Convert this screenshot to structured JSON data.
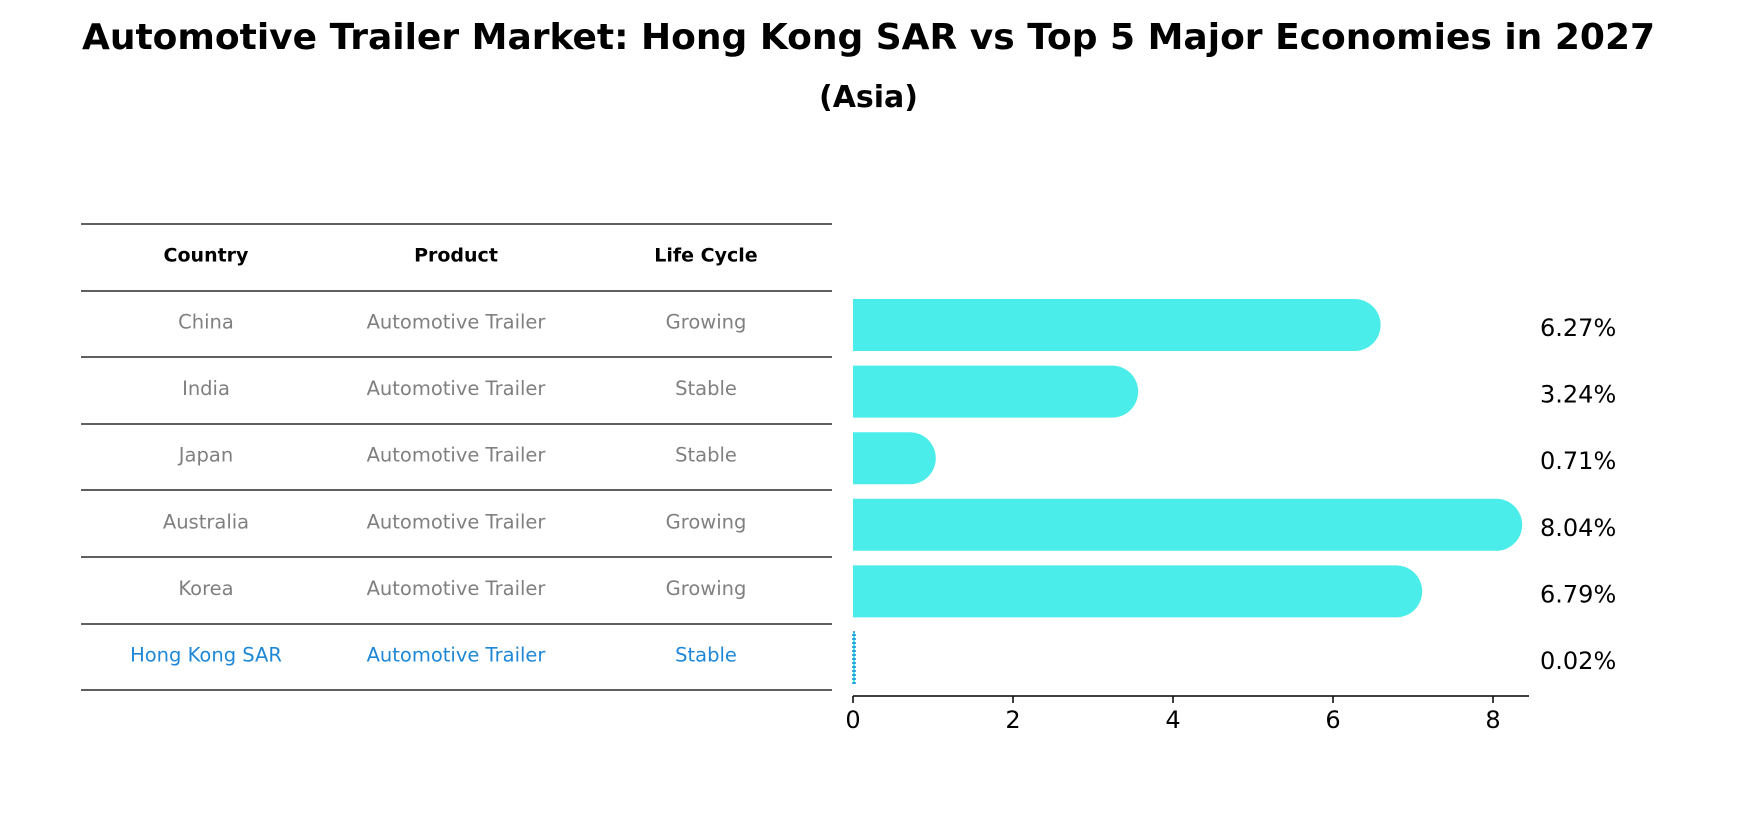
{
  "title": "Automotive Trailer Market: Hong Kong SAR vs Top 5 Major Economies in 2027",
  "subtitle": "(Asia)",
  "colors": {
    "bar": "#4BEDEB",
    "highlight_text": "#1E88D6",
    "highlight_bar_edge": "#1E88D6",
    "row_text": "#808080",
    "header_text": "#000000",
    "rule": "#000000"
  },
  "table": {
    "columns": [
      "Country",
      "Product",
      "Life Cycle"
    ],
    "rows": [
      {
        "country": "China",
        "product": "Automotive Trailer",
        "life_cycle": "Growing",
        "highlight": false
      },
      {
        "country": "India",
        "product": "Automotive Trailer",
        "life_cycle": "Stable",
        "highlight": false
      },
      {
        "country": "Japan",
        "product": "Automotive Trailer",
        "life_cycle": "Stable",
        "highlight": false
      },
      {
        "country": "Australia",
        "product": "Automotive Trailer",
        "life_cycle": "Growing",
        "highlight": false
      },
      {
        "country": "Korea",
        "product": "Automotive Trailer",
        "life_cycle": "Growing",
        "highlight": false
      },
      {
        "country": "Hong Kong SAR",
        "product": "Automotive Trailer",
        "life_cycle": "Stable",
        "highlight": true
      }
    ]
  },
  "chart_data": {
    "type": "bar",
    "orientation": "horizontal",
    "categories": [
      "China",
      "India",
      "Japan",
      "Australia",
      "Korea",
      "Hong Kong SAR"
    ],
    "values": [
      6.27,
      3.24,
      0.71,
      8.04,
      6.79,
      0.02
    ],
    "value_labels": [
      "6.27%",
      "3.24%",
      "0.71%",
      "8.04%",
      "6.79%",
      "0.02%"
    ],
    "xticks": [
      0,
      2,
      4,
      6,
      8
    ],
    "xlim": [
      0,
      8.45
    ],
    "xlabel": "",
    "ylabel": "",
    "grid": false,
    "legend": false
  }
}
